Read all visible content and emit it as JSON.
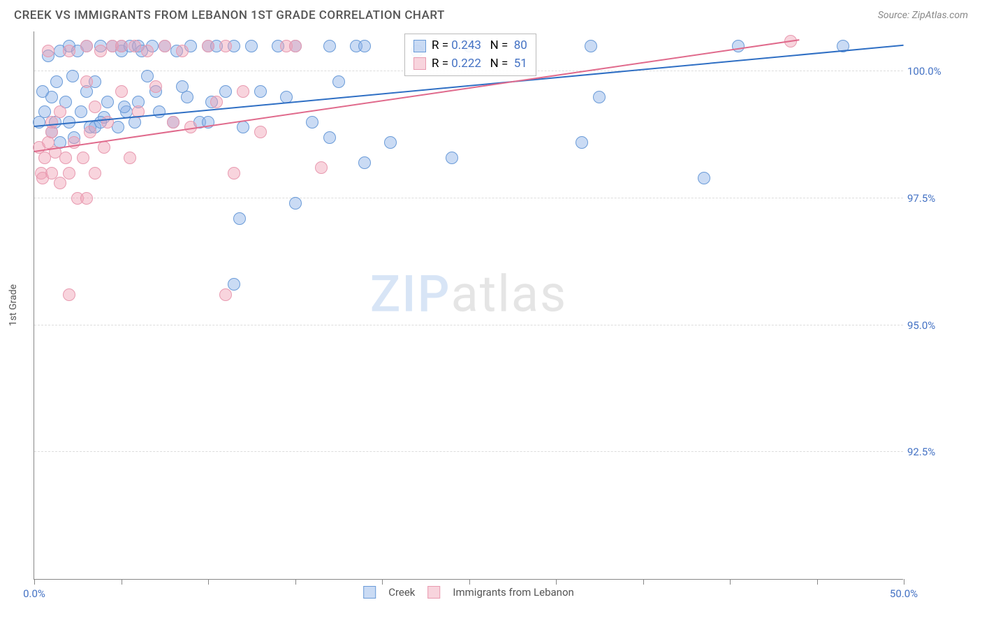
{
  "header": {
    "title": "CREEK VS IMMIGRANTS FROM LEBANON 1ST GRADE CORRELATION CHART",
    "source": "Source: ZipAtlas.com"
  },
  "chart": {
    "type": "scatter",
    "ylabel": "1st Grade",
    "xlim": [
      0,
      50
    ],
    "ylim": [
      90,
      100.8
    ],
    "xticks": [
      0,
      5,
      10,
      15,
      20,
      25,
      30,
      35,
      40,
      45,
      50
    ],
    "xtick_labels": {
      "0": "0.0%",
      "50": "50.0%"
    },
    "yticks": [
      92.5,
      95.0,
      97.5,
      100.0
    ],
    "ytick_labels": [
      "92.5%",
      "95.0%",
      "97.5%",
      "100.0%"
    ],
    "grid_color": "#dddddd",
    "background_color": "#ffffff",
    "watermark": {
      "t1": "ZIP",
      "t2": "atlas"
    },
    "series": [
      {
        "name": "Creek",
        "color_fill": "rgba(137,175,230,0.45)",
        "color_stroke": "#6a9bd8",
        "marker_radius": 9,
        "R": "0.243",
        "N": "80",
        "trend": {
          "x1": 0,
          "y1": 98.9,
          "x2": 50,
          "y2": 100.5,
          "color": "#2f6fc4",
          "width": 2
        },
        "points": [
          [
            0.3,
            99.0
          ],
          [
            0.6,
            99.2
          ],
          [
            0.8,
            100.3
          ],
          [
            1.0,
            98.8
          ],
          [
            1.0,
            99.5
          ],
          [
            1.2,
            99.0
          ],
          [
            1.5,
            100.4
          ],
          [
            1.5,
            98.6
          ],
          [
            1.8,
            99.4
          ],
          [
            2.0,
            100.5
          ],
          [
            2.0,
            99.0
          ],
          [
            2.3,
            98.7
          ],
          [
            2.5,
            100.4
          ],
          [
            2.7,
            99.2
          ],
          [
            3.0,
            99.6
          ],
          [
            3.0,
            100.5
          ],
          [
            3.2,
            98.9
          ],
          [
            3.5,
            99.8
          ],
          [
            3.8,
            100.5
          ],
          [
            4.0,
            99.1
          ],
          [
            4.2,
            99.4
          ],
          [
            4.5,
            100.5
          ],
          [
            4.8,
            98.9
          ],
          [
            5.0,
            100.4
          ],
          [
            5.0,
            100.5
          ],
          [
            5.3,
            99.2
          ],
          [
            5.5,
            100.5
          ],
          [
            5.8,
            99.0
          ],
          [
            6.0,
            100.5
          ],
          [
            6.0,
            99.4
          ],
          [
            6.5,
            99.9
          ],
          [
            6.8,
            100.5
          ],
          [
            7.0,
            99.6
          ],
          [
            7.5,
            100.5
          ],
          [
            8.0,
            99.0
          ],
          [
            8.2,
            100.4
          ],
          [
            8.5,
            99.7
          ],
          [
            9.0,
            100.5
          ],
          [
            9.5,
            99.0
          ],
          [
            10.0,
            100.5
          ],
          [
            10.2,
            99.4
          ],
          [
            10.5,
            100.5
          ],
          [
            11.0,
            99.6
          ],
          [
            11.5,
            100.5
          ],
          [
            11.8,
            97.1
          ],
          [
            12.0,
            98.9
          ],
          [
            12.5,
            100.5
          ],
          [
            13.0,
            99.6
          ],
          [
            14.0,
            100.5
          ],
          [
            14.5,
            99.5
          ],
          [
            15.0,
            97.4
          ],
          [
            15.0,
            100.5
          ],
          [
            16.0,
            99.0
          ],
          [
            17.0,
            100.5
          ],
          [
            17.5,
            99.8
          ],
          [
            18.5,
            100.5
          ],
          [
            19.0,
            100.5
          ],
          [
            19.0,
            98.2
          ],
          [
            20.5,
            98.6
          ],
          [
            22.0,
            100.4
          ],
          [
            24.0,
            98.3
          ],
          [
            25.0,
            100.5
          ],
          [
            31.5,
            98.6
          ],
          [
            32.0,
            100.5
          ],
          [
            32.5,
            99.5
          ],
          [
            38.5,
            97.9
          ],
          [
            40.5,
            100.5
          ],
          [
            46.5,
            100.5
          ],
          [
            17.0,
            98.7
          ],
          [
            11.5,
            95.8
          ],
          [
            10.0,
            99.0
          ],
          [
            3.5,
            98.9
          ],
          [
            5.2,
            99.3
          ],
          [
            7.2,
            99.2
          ],
          [
            8.8,
            99.5
          ],
          [
            6.2,
            100.4
          ],
          [
            2.2,
            99.9
          ],
          [
            1.3,
            99.8
          ],
          [
            0.5,
            99.6
          ],
          [
            3.8,
            99.0
          ]
        ]
      },
      {
        "name": "Immigrants from Lebanon",
        "color_fill": "rgba(240,160,180,0.45)",
        "color_stroke": "#e89ab0",
        "marker_radius": 9,
        "R": "0.222",
        "N": "51",
        "trend": {
          "x1": 0,
          "y1": 98.4,
          "x2": 44,
          "y2": 100.6,
          "color": "#e06a8c",
          "width": 2
        },
        "points": [
          [
            0.3,
            98.5
          ],
          [
            0.4,
            98.0
          ],
          [
            0.5,
            97.9
          ],
          [
            0.6,
            98.3
          ],
          [
            0.8,
            98.6
          ],
          [
            0.8,
            100.4
          ],
          [
            1.0,
            98.0
          ],
          [
            1.0,
            99.0
          ],
          [
            1.2,
            98.4
          ],
          [
            1.5,
            97.8
          ],
          [
            1.5,
            99.2
          ],
          [
            1.8,
            98.3
          ],
          [
            2.0,
            98.0
          ],
          [
            2.0,
            100.4
          ],
          [
            2.3,
            98.6
          ],
          [
            2.5,
            97.5
          ],
          [
            2.8,
            98.3
          ],
          [
            3.0,
            99.8
          ],
          [
            3.0,
            100.5
          ],
          [
            3.2,
            98.8
          ],
          [
            3.5,
            98.0
          ],
          [
            3.8,
            100.4
          ],
          [
            4.0,
            98.5
          ],
          [
            4.2,
            99.0
          ],
          [
            4.5,
            100.5
          ],
          [
            5.0,
            99.6
          ],
          [
            5.0,
            100.5
          ],
          [
            5.5,
            98.3
          ],
          [
            5.8,
            100.5
          ],
          [
            6.0,
            99.2
          ],
          [
            6.5,
            100.4
          ],
          [
            7.0,
            99.7
          ],
          [
            7.5,
            100.5
          ],
          [
            8.0,
            99.0
          ],
          [
            8.5,
            100.4
          ],
          [
            9.0,
            98.9
          ],
          [
            10.0,
            100.5
          ],
          [
            10.5,
            99.4
          ],
          [
            11.0,
            100.5
          ],
          [
            11.5,
            98.0
          ],
          [
            12.0,
            99.6
          ],
          [
            13.0,
            98.8
          ],
          [
            14.5,
            100.5
          ],
          [
            15.0,
            100.5
          ],
          [
            16.5,
            98.1
          ],
          [
            3.0,
            97.5
          ],
          [
            2.0,
            95.6
          ],
          [
            11.0,
            95.6
          ],
          [
            43.5,
            100.6
          ],
          [
            1.0,
            98.8
          ],
          [
            3.5,
            99.3
          ]
        ]
      }
    ],
    "legend_bottom": [
      {
        "label": "Creek",
        "fill": "rgba(137,175,230,0.45)",
        "stroke": "#6a9bd8"
      },
      {
        "label": "Immigrants from Lebanon",
        "fill": "rgba(240,160,180,0.45)",
        "stroke": "#e89ab0"
      }
    ],
    "stats_box": {
      "rows": [
        {
          "fill": "rgba(137,175,230,0.45)",
          "stroke": "#6a9bd8",
          "r": "0.243",
          "n": "80"
        },
        {
          "fill": "rgba(240,160,180,0.45)",
          "stroke": "#e89ab0",
          "r": "0.222",
          "n": "51"
        }
      ]
    }
  }
}
